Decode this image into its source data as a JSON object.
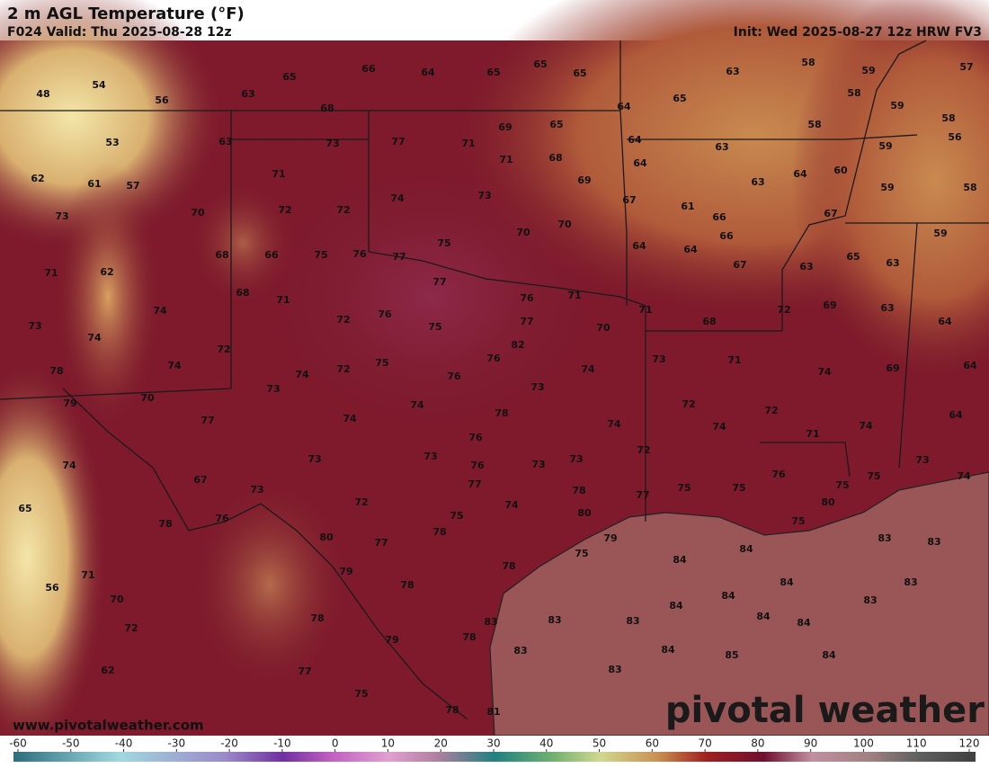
{
  "header": {
    "title": "2 m AGL Temperature (°F)",
    "valid": "F024 Valid: Thu 2025-08-28 12z",
    "init": "Init: Wed 2025-08-27 12z HRW FV3"
  },
  "map": {
    "labels": [
      48,
      54,
      56,
      63,
      65,
      66,
      64,
      65,
      65,
      65,
      63,
      58,
      59,
      57,
      58,
      59,
      58,
      65,
      64,
      68,
      53,
      63,
      73,
      77,
      71,
      69,
      65,
      64,
      63,
      58,
      56,
      59,
      62,
      61,
      57,
      71,
      71,
      68,
      69,
      64,
      64,
      63,
      60,
      59,
      58,
      73,
      70,
      72,
      72,
      74,
      73,
      67,
      61,
      66,
      67,
      62,
      71,
      68,
      66,
      75,
      76,
      77,
      75,
      70,
      70,
      64,
      64,
      66,
      67,
      63,
      65,
      63,
      59,
      68,
      71,
      77,
      76,
      71,
      71,
      72,
      69,
      63,
      74,
      73,
      74,
      72,
      76,
      75,
      77,
      70,
      68,
      64,
      82,
      72,
      78,
      74,
      74,
      72,
      75,
      76,
      76,
      74,
      73,
      71,
      74,
      69,
      64,
      79,
      70,
      73,
      73,
      74,
      72,
      78,
      77,
      74,
      72,
      74,
      74,
      71,
      74,
      64,
      74,
      73,
      73,
      76,
      76,
      73,
      73,
      72,
      76,
      75,
      73,
      74,
      67,
      73,
      77,
      78,
      77,
      75,
      75,
      75,
      80,
      65,
      76,
      72,
      74,
      75,
      80,
      78,
      78,
      79,
      75,
      83,
      83,
      80,
      77,
      75,
      84,
      84,
      78,
      71,
      79,
      78,
      84,
      83,
      56,
      70,
      84,
      84,
      83,
      78,
      83,
      83,
      83,
      84,
      84,
      72,
      79,
      78,
      83,
      84,
      85,
      84,
      62,
      77,
      83,
      75,
      78,
      81
    ]
  },
  "footer": {
    "website": "www.pivotalweather.com",
    "logo": "pivotal weather"
  },
  "colorbar": {
    "ticks": [
      -60,
      -50,
      -40,
      -30,
      -20,
      -10,
      0,
      10,
      20,
      30,
      40,
      50,
      60,
      70,
      80,
      90,
      100,
      110,
      120
    ]
  }
}
